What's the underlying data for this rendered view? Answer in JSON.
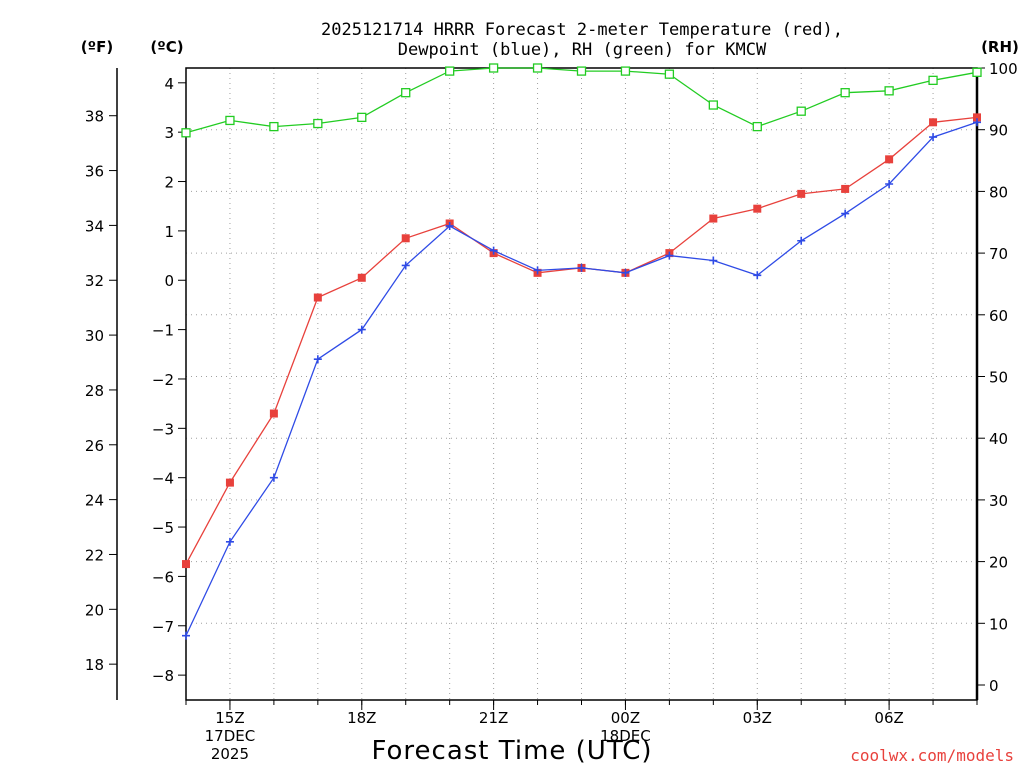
{
  "chart_data": {
    "type": "line",
    "title": [
      "2025121714 HRRR Forecast 2-meter Temperature (red),",
      "Dewpoint (blue), RH (green) for KMCW"
    ],
    "xlabel": "Forecast Time (UTC)",
    "credit": "coolwx.com/models",
    "units": {
      "left_f": "(ºF)",
      "left_c": "(ºC)",
      "right_rh": "(RH)"
    },
    "x_hours": [
      14,
      15,
      16,
      17,
      18,
      19,
      20,
      21,
      22,
      23,
      24,
      25,
      26,
      27,
      28,
      29,
      30,
      31,
      32
    ],
    "x_ticks": [
      {
        "hour": 15,
        "lines": [
          "15Z",
          "17DEC",
          "2025"
        ]
      },
      {
        "hour": 18,
        "lines": [
          "18Z"
        ]
      },
      {
        "hour": 21,
        "lines": [
          "21Z"
        ]
      },
      {
        "hour": 24,
        "lines": [
          "00Z",
          "18DEC"
        ]
      },
      {
        "hour": 27,
        "lines": [
          "03Z"
        ]
      },
      {
        "hour": 30,
        "lines": [
          "06Z"
        ]
      }
    ],
    "xlim": [
      14,
      32
    ],
    "y_celsius": {
      "lim": [
        -8.2,
        4.3
      ],
      "ticks": [
        -8,
        -7,
        -6,
        -5,
        -4,
        -3,
        -2,
        -1,
        0,
        1,
        2,
        3,
        4
      ]
    },
    "y_fahrenheit": {
      "ticks": [
        18,
        20,
        22,
        24,
        26,
        28,
        30,
        32,
        34,
        36,
        38
      ]
    },
    "y_rh": {
      "lim": [
        0,
        100
      ],
      "ticks": [
        0,
        10,
        20,
        30,
        40,
        50,
        60,
        70,
        80,
        90,
        100
      ]
    },
    "series": [
      {
        "name": "Temperature (°C)",
        "color": "#e8413c",
        "axis": "celsius",
        "marker": "filled-square",
        "values": [
          -5.75,
          -4.1,
          -2.7,
          -0.35,
          0.05,
          0.85,
          1.15,
          0.55,
          0.15,
          0.25,
          0.15,
          0.55,
          1.25,
          1.45,
          1.75,
          1.85,
          2.45,
          3.2,
          3.3
        ]
      },
      {
        "name": "Dewpoint (°C)",
        "color": "#2f4be6",
        "axis": "celsius",
        "marker": "plus",
        "values": [
          -7.2,
          -5.3,
          -4.0,
          -1.6,
          -1.0,
          0.3,
          1.1,
          0.6,
          0.2,
          0.25,
          0.15,
          0.5,
          0.4,
          0.1,
          0.8,
          1.35,
          1.95,
          2.9,
          3.2
        ]
      },
      {
        "name": "RH (%)",
        "color": "#22cc22",
        "axis": "rh",
        "marker": "open-square",
        "values": [
          89.5,
          91.5,
          90.5,
          91.0,
          92.0,
          96.0,
          99.5,
          100.0,
          100.0,
          99.5,
          99.5,
          99.0,
          94.0,
          90.5,
          93.0,
          96.0,
          96.3,
          98.0,
          99.3
        ]
      }
    ]
  }
}
